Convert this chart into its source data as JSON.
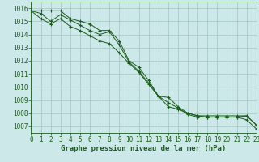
{
  "title": "Graphe pression niveau de la mer (hPa)",
  "background_color": "#cce8e8",
  "grid_color": "#99bbbb",
  "line_color": "#1a5c1a",
  "xlim": [
    0,
    23
  ],
  "ylim": [
    1006.5,
    1016.5
  ],
  "yticks": [
    1007,
    1008,
    1009,
    1010,
    1011,
    1012,
    1013,
    1014,
    1015,
    1016
  ],
  "xticks": [
    0,
    1,
    2,
    3,
    4,
    5,
    6,
    7,
    8,
    9,
    10,
    11,
    12,
    13,
    14,
    15,
    16,
    17,
    18,
    19,
    20,
    21,
    22,
    23
  ],
  "line1": [
    1015.8,
    1015.8,
    1015.8,
    1015.8,
    1015.2,
    1015.0,
    1014.8,
    1014.3,
    1014.3,
    1013.5,
    1012.0,
    1011.5,
    1010.5,
    1009.3,
    1009.2,
    1008.5,
    1008.0,
    1007.8,
    1007.8,
    1007.8,
    1007.8,
    1007.8,
    1007.8,
    1007.1
  ],
  "line2": [
    1015.8,
    1015.6,
    1015.0,
    1015.5,
    1015.1,
    1014.7,
    1014.3,
    1014.0,
    1014.2,
    1013.2,
    1011.9,
    1011.2,
    1010.3,
    1009.3,
    1008.8,
    1008.4,
    1007.9,
    1007.7,
    1007.7,
    1007.7,
    1007.7,
    1007.7,
    1007.8,
    1007.1
  ],
  "line3": [
    1015.8,
    1015.2,
    1014.8,
    1015.2,
    1014.6,
    1014.3,
    1013.9,
    1013.5,
    1013.3,
    1012.6,
    1011.8,
    1011.1,
    1010.2,
    1009.3,
    1008.5,
    1008.3,
    1008.0,
    1007.8,
    1007.7,
    1007.7,
    1007.7,
    1007.7,
    1007.5,
    1006.8
  ],
  "tick_fontsize": 5.5,
  "title_fontsize": 6.5
}
